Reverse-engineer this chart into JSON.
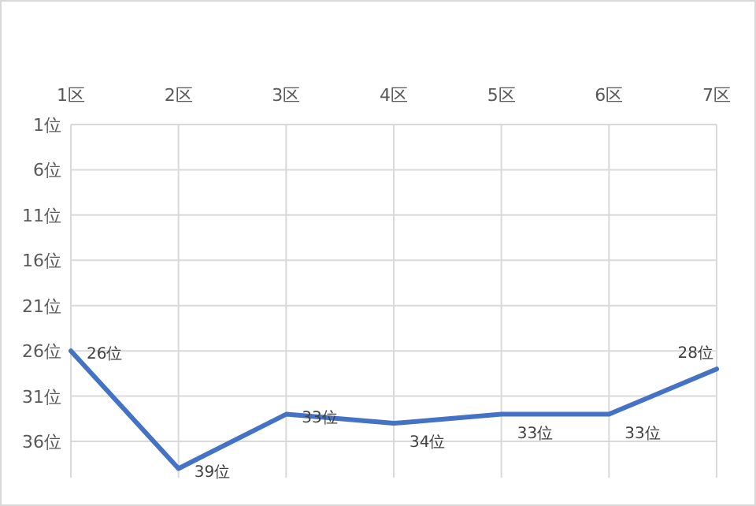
{
  "chart_data": {
    "type": "line",
    "categories": [
      "1区",
      "2区",
      "3区",
      "4区",
      "5区",
      "6区",
      "7区"
    ],
    "series": [
      {
        "color": "#4472c4",
        "values": [
          26,
          39,
          33,
          34,
          33,
          33,
          28
        ],
        "value_labels": [
          "26位",
          "39位",
          "33位",
          "34位",
          "33位",
          "33位",
          "28位"
        ]
      }
    ],
    "ylim": [
      40,
      1
    ],
    "yticks": [
      {
        "value": 1,
        "label": "1位"
      },
      {
        "value": 6,
        "label": "6位"
      },
      {
        "value": 11,
        "label": "11位"
      },
      {
        "value": 16,
        "label": "16位"
      },
      {
        "value": 21,
        "label": "21位"
      },
      {
        "value": 26,
        "label": "26位"
      },
      {
        "value": 31,
        "label": "31位"
      },
      {
        "value": 36,
        "label": "36位"
      }
    ],
    "grid": true,
    "marker": "none",
    "line_style": "solid"
  }
}
